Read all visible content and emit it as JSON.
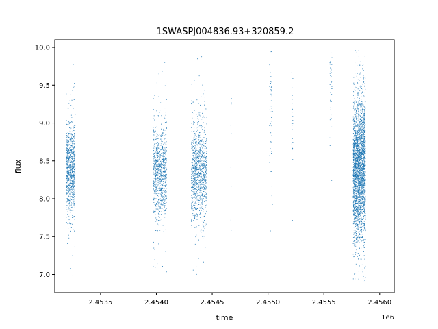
{
  "chart_data": {
    "type": "scatter",
    "title": "1SWASPJ004836.93+320859.2",
    "xlabel": "time",
    "ylabel": "flux",
    "x_offset_label": "1e6",
    "x_ticks": [
      2.4535,
      2.454,
      2.4545,
      2.455,
      2.4555,
      2.456
    ],
    "x_tick_labels": [
      "2.4535",
      "2.4540",
      "2.4545",
      "2.4550",
      "2.4555",
      "2.4560"
    ],
    "y_ticks": [
      7.0,
      7.5,
      8.0,
      8.5,
      9.0,
      9.5,
      10.0
    ],
    "y_tick_labels": [
      "7.0",
      "7.5",
      "8.0",
      "8.5",
      "9.0",
      "9.5",
      "10.0"
    ],
    "xlim": [
      2.45309,
      2.45613
    ],
    "ylim": [
      6.76,
      10.1
    ],
    "grid": false,
    "marker_color": "#1f77b4",
    "series": [
      {
        "clusters": [
          {
            "x_start": 2.45319,
            "x_end": 2.45327,
            "y_center": 8.4,
            "y_spread": 0.3,
            "density": 900
          },
          {
            "x_start": 2.45397,
            "x_end": 2.45409,
            "y_center": 8.35,
            "y_spread": 0.3,
            "density": 900
          },
          {
            "x_start": 2.45431,
            "x_end": 2.45445,
            "y_center": 8.35,
            "y_spread": 0.32,
            "density": 1100
          },
          {
            "x_start": 2.45466,
            "x_end": 2.45467,
            "y_center": 8.7,
            "y_spread": 0.6,
            "density": 15
          },
          {
            "x_start": 2.45501,
            "x_end": 2.45504,
            "y_center": 9.3,
            "y_spread": 0.6,
            "density": 60
          },
          {
            "x_start": 2.45521,
            "x_end": 2.45522,
            "y_center": 9.2,
            "y_spread": 0.4,
            "density": 25
          },
          {
            "x_start": 2.45555,
            "x_end": 2.45557,
            "y_center": 9.5,
            "y_spread": 0.3,
            "density": 60
          },
          {
            "x_start": 2.45576,
            "x_end": 2.45587,
            "y_center": 8.4,
            "y_spread": 0.45,
            "density": 3000
          }
        ]
      }
    ]
  }
}
